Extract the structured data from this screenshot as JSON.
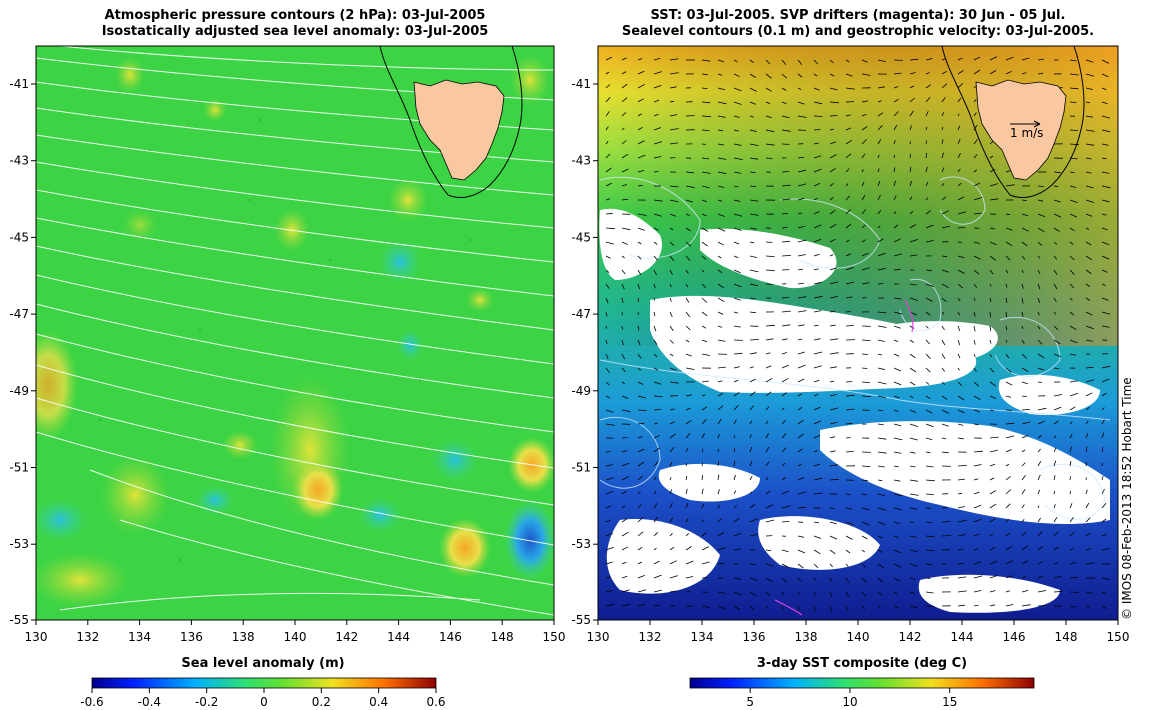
{
  "left_panel": {
    "title_line1": "Atmospheric pressure contours (2 hPa): 03-Jul-2005",
    "title_line2": "Isostatically adjusted sea level anomaly: 03-Jul-2005",
    "colorbar_label": "Sea level anomaly (m)",
    "colorbar_ticks": [
      "-0.6",
      "-0.4",
      "-0.2",
      "0",
      "0.2",
      "0.4",
      "0.6"
    ]
  },
  "right_panel": {
    "title_line1": "SST: 03-Jul-2005. SVP drifters (magenta): 30 Jun - 05 Jul.",
    "title_line2": "Sealevel contours (0.1 m) and geostrophic velocity: 03-Jul-2005.",
    "colorbar_label": "3-day SST composite (deg C)",
    "colorbar_ticks": [
      "5",
      "10",
      "15"
    ],
    "scale_arrow_label": "1 m/s"
  },
  "axes": {
    "lon_ticks": [
      "130",
      "132",
      "134",
      "136",
      "138",
      "140",
      "142",
      "144",
      "146",
      "148",
      "150"
    ],
    "lat_ticks": [
      "-41",
      "-43",
      "-45",
      "-47",
      "-49",
      "-51",
      "-53",
      "-55"
    ]
  },
  "credit": "© IMOS 08-Feb-2013 18:52 Hobart Time",
  "colors": {
    "land": "#f9c8a0",
    "sla_background": "#3cd444",
    "contour_line": "#ffffff",
    "drifter": "#e040e0"
  }
}
